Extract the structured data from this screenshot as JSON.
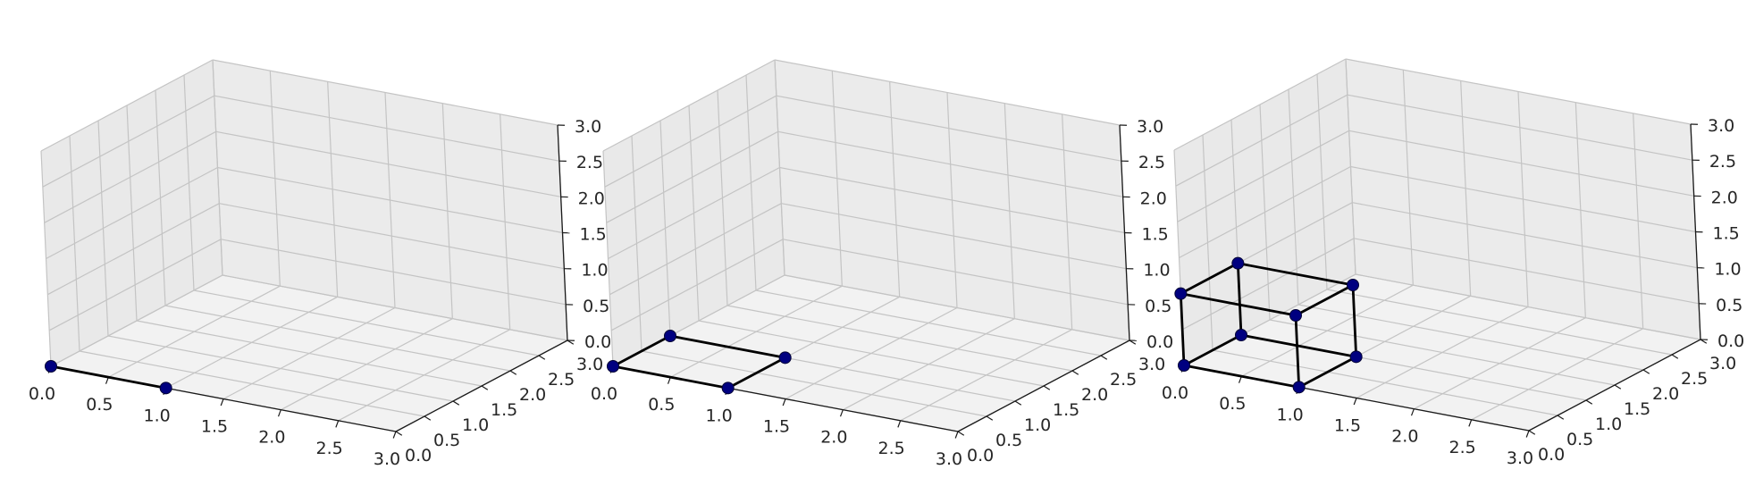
{
  "chart_data": [
    {
      "type": "scatter3d",
      "title": "",
      "xlim": [
        0,
        3
      ],
      "ylim": [
        0,
        3
      ],
      "zlim": [
        0,
        3
      ],
      "xticks": [
        "0.0",
        "0.5",
        "1.0",
        "1.5",
        "2.0",
        "2.5",
        "3.0"
      ],
      "yticks": [
        "0.0",
        "0.5",
        "1.0",
        "1.5",
        "2.0",
        "2.5",
        "3.0"
      ],
      "zticks": [
        "0.0",
        "0.5",
        "1.0",
        "1.5",
        "2.0",
        "2.5",
        "3.0"
      ],
      "grid": true,
      "marker_color": "#000080",
      "line_color": "#000000",
      "points": [
        [
          0,
          0,
          0
        ],
        [
          1,
          0,
          0
        ]
      ],
      "edges": [
        [
          0,
          1
        ]
      ]
    },
    {
      "type": "scatter3d",
      "title": "",
      "xlim": [
        0,
        3
      ],
      "ylim": [
        0,
        3
      ],
      "zlim": [
        0,
        3
      ],
      "xticks": [
        "0.0",
        "0.5",
        "1.0",
        "1.5",
        "2.0",
        "2.5",
        "3.0"
      ],
      "yticks": [
        "0.0",
        "0.5",
        "1.0",
        "1.5",
        "2.0",
        "2.5",
        "3.0"
      ],
      "zticks": [
        "0.0",
        "0.5",
        "1.0",
        "1.5",
        "2.0",
        "2.5",
        "3.0"
      ],
      "grid": true,
      "marker_color": "#000080",
      "line_color": "#000000",
      "points": [
        [
          0,
          0,
          0
        ],
        [
          1,
          0,
          0
        ],
        [
          0,
          1,
          0
        ],
        [
          1,
          1,
          0
        ]
      ],
      "edges": [
        [
          0,
          1
        ],
        [
          1,
          3
        ],
        [
          3,
          2
        ],
        [
          2,
          0
        ]
      ]
    },
    {
      "type": "scatter3d",
      "title": "",
      "xlim": [
        0,
        3
      ],
      "ylim": [
        0,
        3
      ],
      "zlim": [
        0,
        3
      ],
      "xticks": [
        "0.0",
        "0.5",
        "1.0",
        "1.5",
        "2.0",
        "2.5",
        "3.0"
      ],
      "yticks": [
        "0.0",
        "0.5",
        "1.0",
        "1.5",
        "2.0",
        "2.5",
        "3.0"
      ],
      "zticks": [
        "0.0",
        "0.5",
        "1.0",
        "1.5",
        "2.0",
        "2.5",
        "3.0"
      ],
      "grid": true,
      "marker_color": "#000080",
      "line_color": "#000000",
      "points": [
        [
          0,
          0,
          0
        ],
        [
          1,
          0,
          0
        ],
        [
          0,
          1,
          0
        ],
        [
          1,
          1,
          0
        ],
        [
          0,
          0,
          1
        ],
        [
          1,
          0,
          1
        ],
        [
          0,
          1,
          1
        ],
        [
          1,
          1,
          1
        ]
      ],
      "edges": [
        [
          0,
          1
        ],
        [
          1,
          3
        ],
        [
          3,
          2
        ],
        [
          2,
          0
        ],
        [
          4,
          5
        ],
        [
          5,
          7
        ],
        [
          7,
          6
        ],
        [
          6,
          4
        ],
        [
          0,
          4
        ],
        [
          1,
          5
        ],
        [
          2,
          6
        ],
        [
          3,
          7
        ]
      ]
    }
  ]
}
